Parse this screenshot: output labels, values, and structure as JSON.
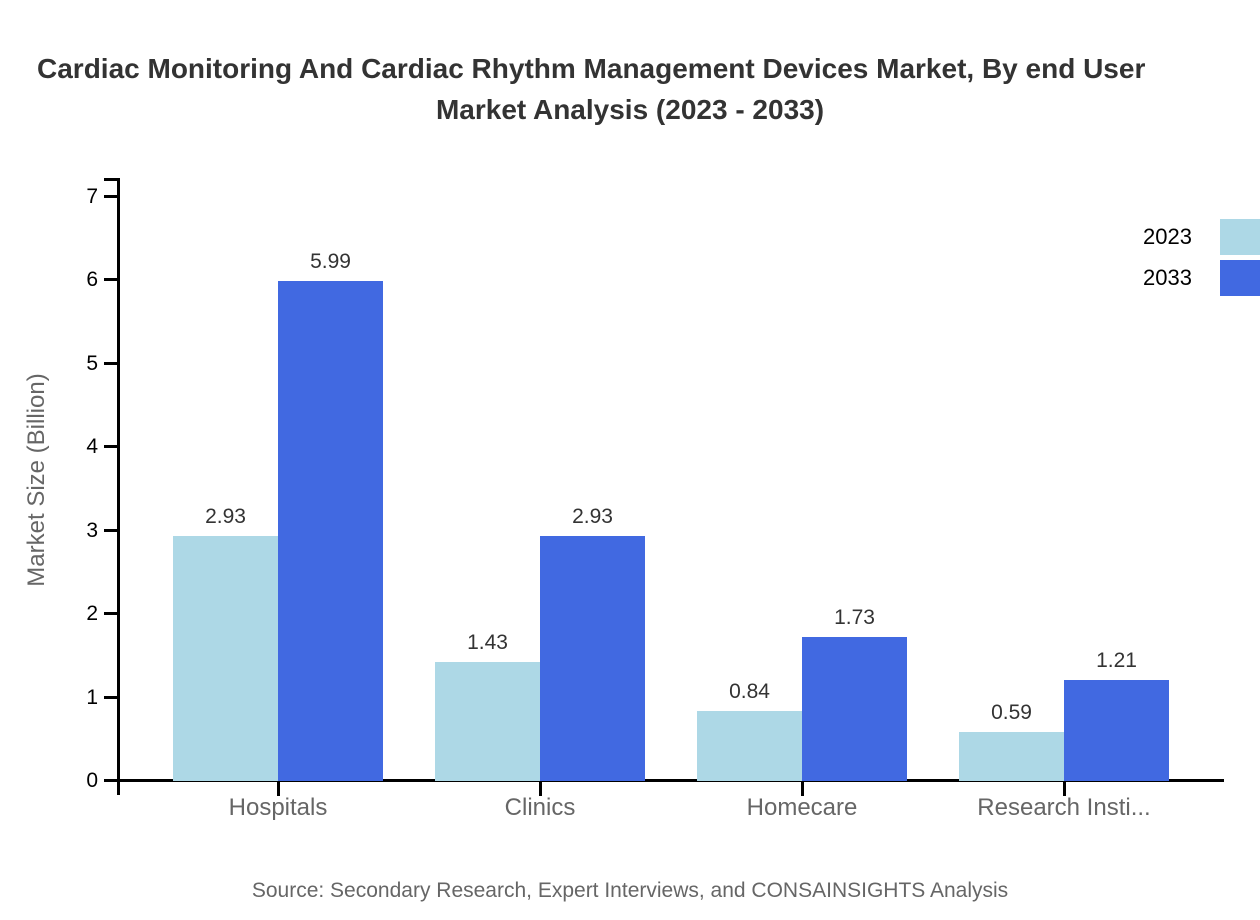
{
  "title": {
    "line1": "Cardiac Monitoring And Cardiac Rhythm Management Devices Market, By end User",
    "line2": "Market Analysis (2023 - 2033)"
  },
  "y_axis": {
    "title": "Market Size (Billion)",
    "ticks": [
      0,
      1,
      2,
      3,
      4,
      5,
      6,
      7
    ]
  },
  "legend": [
    {
      "label": "2023",
      "color": "#ADD8E6"
    },
    {
      "label": "2033",
      "color": "#4169E1"
    }
  ],
  "source_note": "Source: Secondary Research, Expert Interviews, and CONSAINSIGHTS Analysis",
  "colors": {
    "series_2023": "#ADD8E6",
    "series_2033": "#4169E1",
    "axis": "#000000",
    "title_text": "#333333",
    "muted_text": "#666666"
  },
  "chart_data": {
    "type": "bar",
    "categories": [
      "Hospitals",
      "Clinics",
      "Homecare",
      "Research Insti..."
    ],
    "series": [
      {
        "name": "2023",
        "color": "#ADD8E6",
        "values": [
          2.93,
          1.43,
          0.84,
          0.59
        ]
      },
      {
        "name": "2033",
        "color": "#4169E1",
        "values": [
          5.99,
          2.93,
          1.73,
          1.21
        ]
      }
    ],
    "title": "Cardiac Monitoring And Cardiac Rhythm Management Devices Market, By end User Market Analysis (2023 - 2033)",
    "xlabel": "",
    "ylabel": "Market Size (Billion)",
    "ylim": [
      0,
      7
    ],
    "grid": false,
    "legend_position": "top-right",
    "value_labels": true
  }
}
